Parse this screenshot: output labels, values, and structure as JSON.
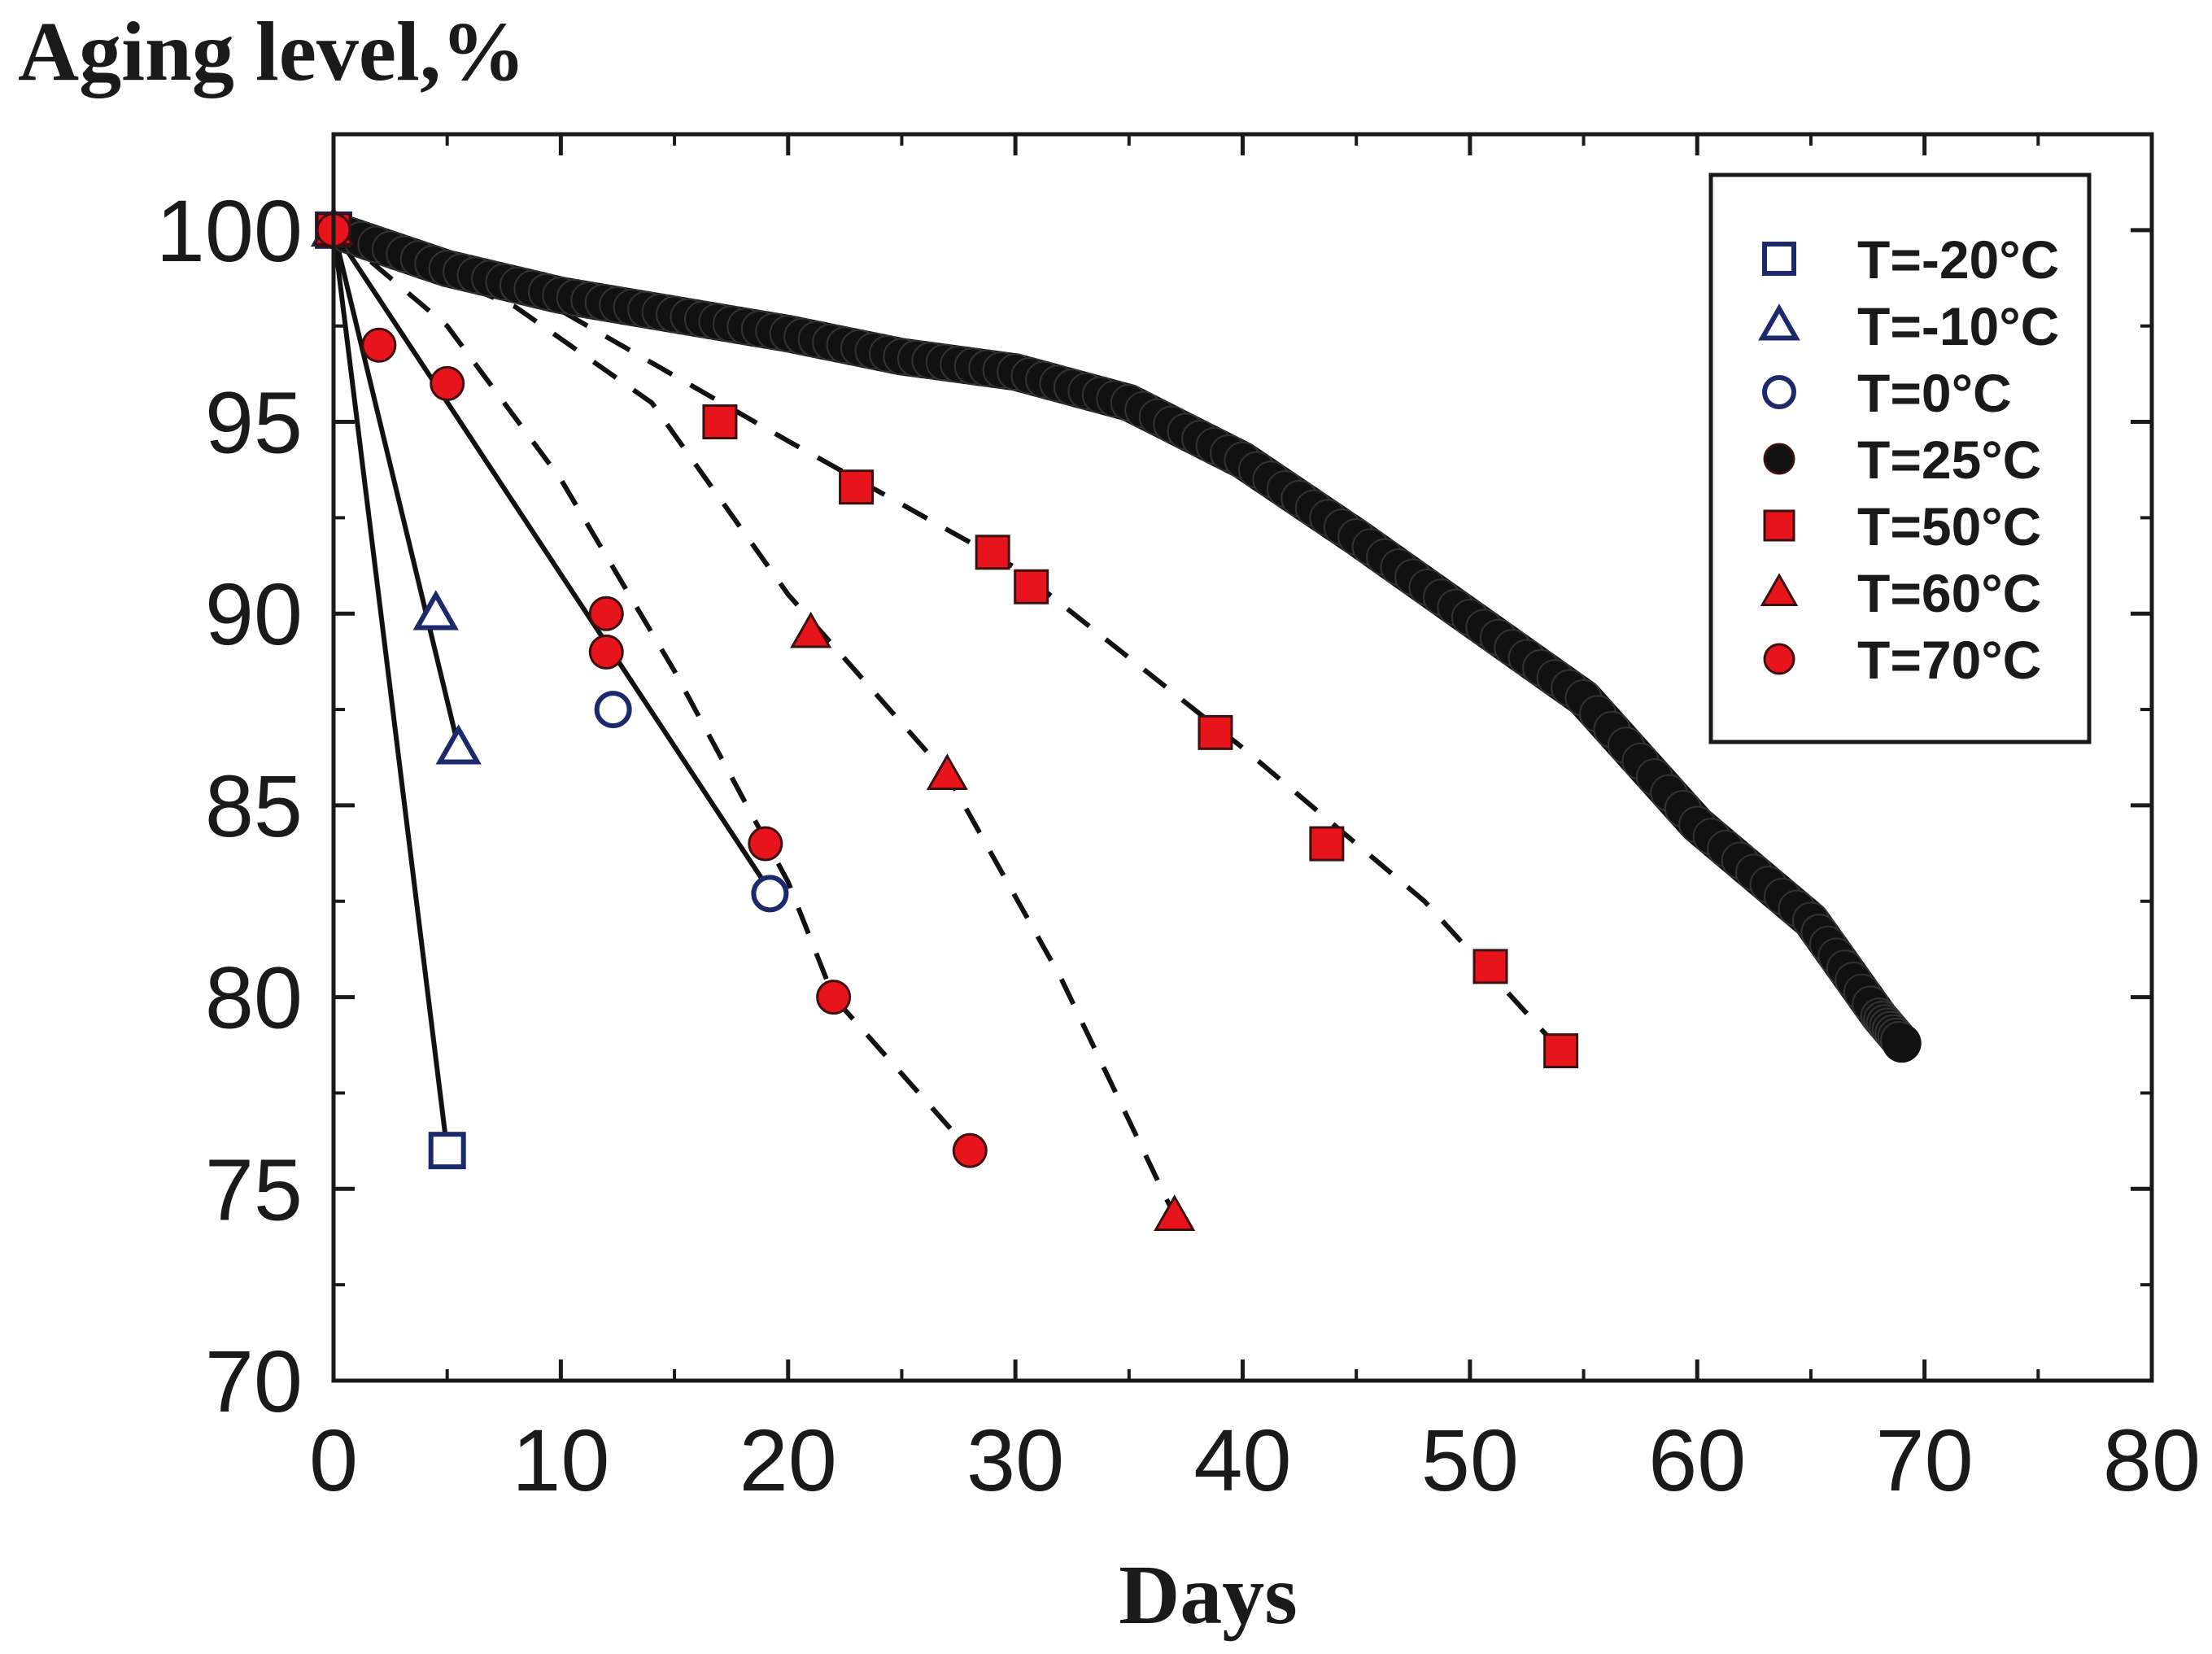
{
  "chart_data": {
    "type": "line",
    "ylabel": "Aging level,%",
    "xlabel": "Days",
    "xlim": [
      0,
      80
    ],
    "ylim": [
      70,
      102.5
    ],
    "xticks": [
      0,
      10,
      20,
      30,
      40,
      50,
      60,
      70,
      80
    ],
    "yticks": [
      70,
      75,
      80,
      85,
      90,
      95,
      100
    ],
    "xtick_labels": [
      "0",
      "10",
      "20",
      "30",
      "40",
      "50",
      "60",
      "70",
      "80"
    ],
    "ytick_labels": [
      "70",
      "75",
      "80",
      "85",
      "90",
      "95",
      "100"
    ],
    "legend_position": "top-right",
    "series": [
      {
        "name": "T=-20°C",
        "marker": "square-open",
        "color": "#1c2a6b",
        "line": "solid",
        "points": [
          [
            0,
            100
          ],
          [
            5,
            76
          ]
        ],
        "fit": [
          [
            0,
            100
          ],
          [
            5,
            76
          ]
        ]
      },
      {
        "name": "T=-10°C",
        "marker": "triangle-open",
        "color": "#1c2a6b",
        "line": "solid",
        "points": [
          [
            0,
            100
          ],
          [
            4.5,
            90
          ],
          [
            5.5,
            86.5
          ]
        ],
        "fit": [
          [
            0,
            100
          ],
          [
            5.5,
            86.5
          ]
        ]
      },
      {
        "name": "T=0°C",
        "marker": "circle-open",
        "color": "#1c2a6b",
        "line": "solid",
        "points": [
          [
            0,
            100
          ],
          [
            12.3,
            87.5
          ],
          [
            19.2,
            82.7
          ]
        ],
        "fit": [
          [
            0,
            100
          ],
          [
            19.5,
            82.5
          ]
        ]
      },
      {
        "name": "T=25°C",
        "marker": "circle-filled",
        "color": "#111111",
        "line": "dense",
        "points": [
          [
            0,
            100
          ],
          [
            5,
            99
          ],
          [
            10,
            98.3
          ],
          [
            15,
            97.8
          ],
          [
            20,
            97.3
          ],
          [
            25,
            96.7
          ],
          [
            30,
            96.3
          ],
          [
            35,
            95.5
          ],
          [
            40,
            94
          ],
          [
            45,
            92
          ],
          [
            50,
            89.9
          ],
          [
            55,
            87.8
          ],
          [
            60,
            84.5
          ],
          [
            65,
            82
          ],
          [
            68,
            79.5
          ],
          [
            69,
            78.8
          ]
        ]
      },
      {
        "name": "T=50°C",
        "marker": "square-filled",
        "color": "#e8141b",
        "line": "dashed",
        "points": [
          [
            0,
            100
          ],
          [
            17,
            95
          ],
          [
            23,
            93.3
          ],
          [
            29,
            91.6
          ],
          [
            30.7,
            90.7
          ],
          [
            38.8,
            86.9
          ],
          [
            43.7,
            84
          ],
          [
            50.9,
            80.8
          ],
          [
            54,
            78.6
          ]
        ],
        "fit": [
          [
            0,
            100
          ],
          [
            10,
            97.9
          ],
          [
            20,
            94.5
          ],
          [
            30,
            91.2
          ],
          [
            40,
            86.5
          ],
          [
            48,
            82.5
          ],
          [
            54,
            78.6
          ]
        ]
      },
      {
        "name": "T=60°C",
        "marker": "triangle-filled",
        "color": "#e8141b",
        "line": "dashed",
        "points": [
          [
            0,
            100
          ],
          [
            21,
            89.5
          ],
          [
            27,
            85.8
          ],
          [
            37,
            74.3
          ]
        ],
        "fit": [
          [
            0,
            100
          ],
          [
            8,
            98
          ],
          [
            14,
            95.5
          ],
          [
            20,
            90.5
          ],
          [
            27,
            85.8
          ],
          [
            32,
            80.5
          ],
          [
            37,
            74.3
          ]
        ]
      },
      {
        "name": "T=70°C",
        "marker": "circle-filled",
        "color": "#e8141b",
        "line": "dashed",
        "points": [
          [
            0,
            100
          ],
          [
            2,
            97
          ],
          [
            5,
            96
          ],
          [
            12,
            90
          ],
          [
            12,
            89
          ],
          [
            19,
            84
          ],
          [
            22,
            80
          ],
          [
            28,
            76
          ]
        ],
        "fit": [
          [
            0,
            100
          ],
          [
            5,
            97.5
          ],
          [
            10,
            93.5
          ],
          [
            15,
            88.5
          ],
          [
            20,
            83
          ],
          [
            22,
            80
          ],
          [
            28,
            76
          ]
        ]
      }
    ]
  }
}
